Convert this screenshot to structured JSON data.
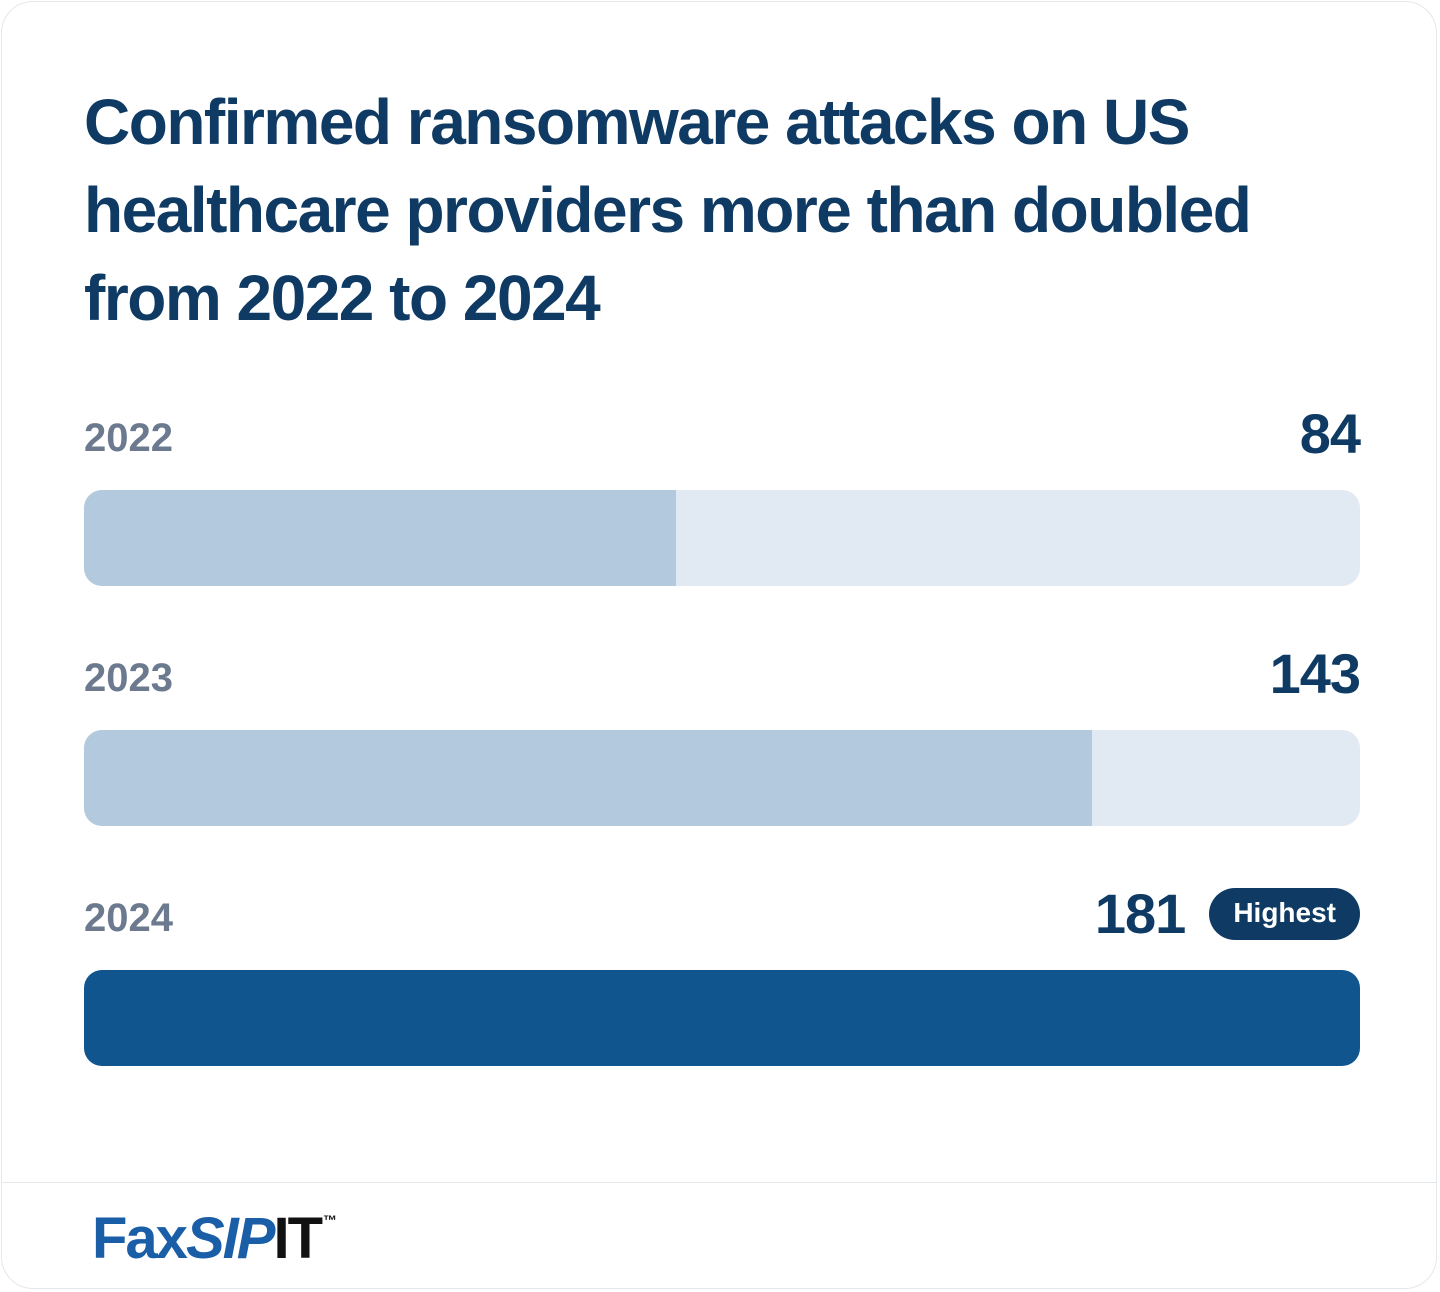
{
  "chart_data": {
    "type": "bar",
    "orientation": "horizontal",
    "title": "Confirmed ransomware attacks on US healthcare providers more than doubled from 2022 to 2024",
    "categories": [
      "2022",
      "2023",
      "2024"
    ],
    "values": [
      84,
      143,
      181
    ],
    "value_labels": [
      "84",
      "143",
      "181"
    ],
    "xlim": [
      0,
      181
    ],
    "highlight_index": 2,
    "badge_label": "Highest",
    "grid": false,
    "legend": "none",
    "colors": {
      "fill": "#b2c9de",
      "track": "#e1e9f2",
      "highlight": "#11558f",
      "text_dark": "#0e3a63",
      "text_muted": "#6b7a8f"
    }
  },
  "footer": {
    "logo": {
      "part1": "Fax",
      "part2": "SIP",
      "part3": "IT",
      "trademark": "™"
    }
  }
}
